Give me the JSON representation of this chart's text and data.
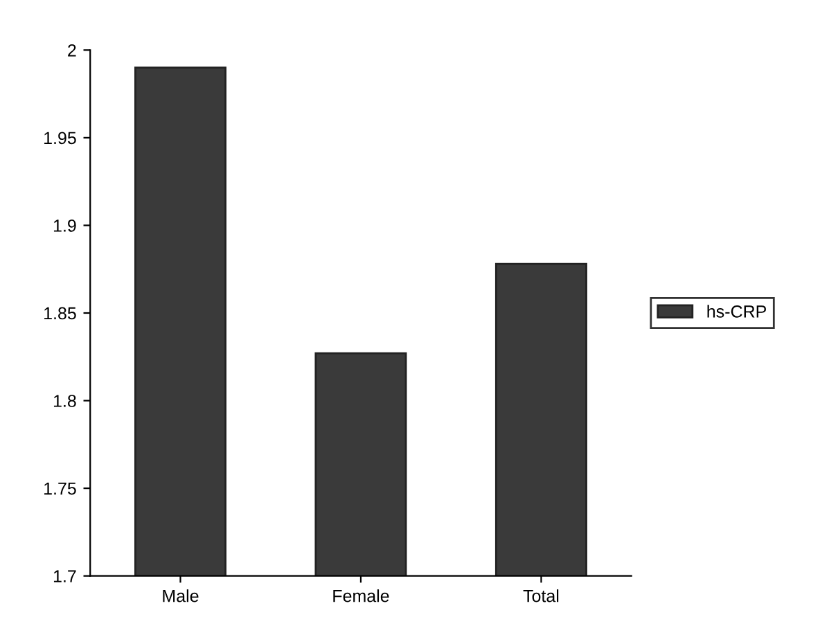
{
  "chart_data": {
    "type": "bar",
    "categories": [
      "Male",
      "Female",
      "Total"
    ],
    "series": [
      {
        "name": "hs-CRP",
        "color": "#3a3a3a",
        "values": [
          1.99,
          1.827,
          1.878
        ]
      }
    ],
    "ylim": [
      1.7,
      2
    ],
    "yticks": [
      1.7,
      1.75,
      1.8,
      1.85,
      1.9,
      1.95,
      2
    ],
    "grid": false,
    "legend": "right"
  }
}
